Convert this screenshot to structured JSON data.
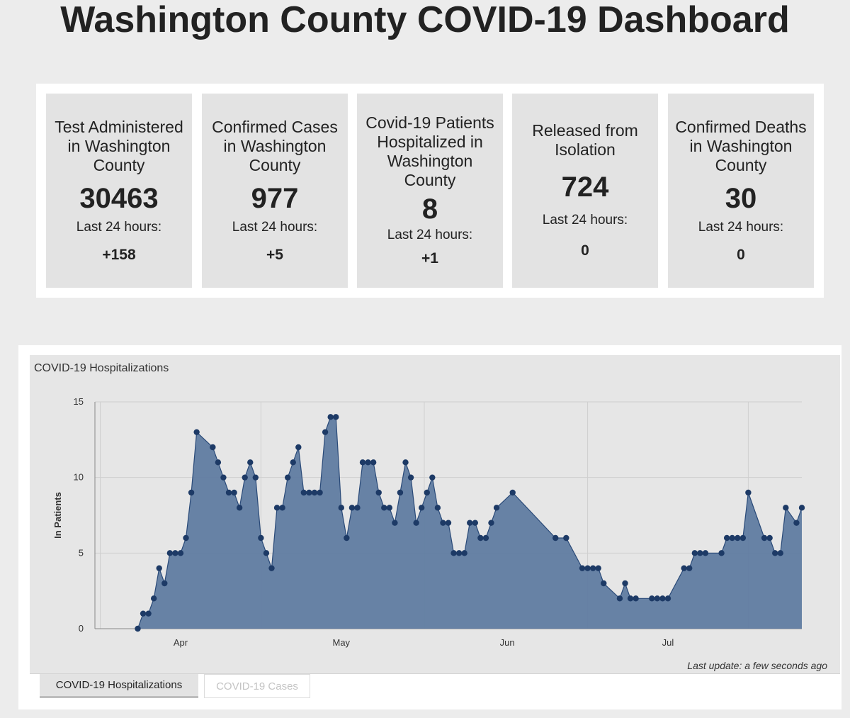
{
  "page": {
    "title": "Washington County COVID-19 Dashboard"
  },
  "stats": [
    {
      "label": "Test Administered in Washington County",
      "value": "30463",
      "sub_label": "Last 24 hours:",
      "delta": "+158"
    },
    {
      "label": "Confirmed Cases in Washington County",
      "value": "977",
      "sub_label": "Last 24 hours:",
      "delta": "+5"
    },
    {
      "label": "Covid-19 Patients Hospitalized in Washington County",
      "value": "8",
      "sub_label": "Last 24 hours:",
      "delta": "+1"
    },
    {
      "label": "Released from Isolation",
      "value": "724",
      "sub_label": "Last 24 hours:",
      "delta": "0"
    },
    {
      "label": "Confirmed Deaths in Washington County",
      "value": "30",
      "sub_label": "Last 24 hours:",
      "delta": "0"
    }
  ],
  "chart_panel": {
    "last_update": "Last update: a few seconds ago",
    "tabs": [
      {
        "label": "COVID-19 Hospitalizations",
        "active": true
      },
      {
        "label": "COVID-19 Cases",
        "active": false
      }
    ]
  },
  "colors": {
    "area_fill": "#5c7aa0",
    "line": "#2a4a78",
    "marker": "#1d3a66",
    "grid": "#cfcfcf"
  },
  "chart_data": {
    "type": "area",
    "title": "COVID-19 Hospitalizations",
    "xlabel": "",
    "ylabel": "In Patients",
    "ylim": [
      0,
      15
    ],
    "yticks": [
      0,
      5,
      10,
      15
    ],
    "x_unit": "day of year 2020",
    "xlim": [
      76,
      208
    ],
    "xticks": [
      {
        "label": "Apr",
        "day": 92
      },
      {
        "label": "May",
        "day": 122
      },
      {
        "label": "Jun",
        "day": 153
      },
      {
        "label": "Jul",
        "day": 183
      }
    ],
    "series": [
      {
        "name": "In Patients",
        "points": [
          [
            84,
            0
          ],
          [
            85,
            1
          ],
          [
            86,
            1
          ],
          [
            87,
            2
          ],
          [
            88,
            4
          ],
          [
            89,
            3
          ],
          [
            90,
            5
          ],
          [
            91,
            5
          ],
          [
            92,
            5
          ],
          [
            93,
            6
          ],
          [
            94,
            9
          ],
          [
            95,
            13
          ],
          [
            98,
            12
          ],
          [
            99,
            11
          ],
          [
            100,
            10
          ],
          [
            101,
            9
          ],
          [
            102,
            9
          ],
          [
            103,
            8
          ],
          [
            104,
            10
          ],
          [
            105,
            11
          ],
          [
            106,
            10
          ],
          [
            107,
            6
          ],
          [
            108,
            5
          ],
          [
            109,
            4
          ],
          [
            110,
            8
          ],
          [
            111,
            8
          ],
          [
            112,
            10
          ],
          [
            113,
            11
          ],
          [
            114,
            12
          ],
          [
            115,
            9
          ],
          [
            116,
            9
          ],
          [
            117,
            9
          ],
          [
            118,
            9
          ],
          [
            119,
            13
          ],
          [
            120,
            14
          ],
          [
            121,
            14
          ],
          [
            122,
            8
          ],
          [
            123,
            6
          ],
          [
            124,
            8
          ],
          [
            125,
            8
          ],
          [
            126,
            11
          ],
          [
            127,
            11
          ],
          [
            128,
            11
          ],
          [
            129,
            9
          ],
          [
            130,
            8
          ],
          [
            131,
            8
          ],
          [
            132,
            7
          ],
          [
            133,
            9
          ],
          [
            134,
            11
          ],
          [
            135,
            10
          ],
          [
            136,
            7
          ],
          [
            137,
            8
          ],
          [
            138,
            9
          ],
          [
            139,
            10
          ],
          [
            140,
            8
          ],
          [
            141,
            7
          ],
          [
            142,
            7
          ],
          [
            143,
            5
          ],
          [
            144,
            5
          ],
          [
            145,
            5
          ],
          [
            146,
            7
          ],
          [
            147,
            7
          ],
          [
            148,
            6
          ],
          [
            149,
            6
          ],
          [
            150,
            7
          ],
          [
            151,
            8
          ],
          [
            154,
            9
          ],
          [
            162,
            6
          ],
          [
            164,
            6
          ],
          [
            167,
            4
          ],
          [
            168,
            4
          ],
          [
            169,
            4
          ],
          [
            170,
            4
          ],
          [
            171,
            3
          ],
          [
            174,
            2
          ],
          [
            175,
            3
          ],
          [
            176,
            2
          ],
          [
            177,
            2
          ],
          [
            180,
            2
          ],
          [
            181,
            2
          ],
          [
            182,
            2
          ],
          [
            183,
            2
          ],
          [
            186,
            4
          ],
          [
            187,
            4
          ],
          [
            188,
            5
          ],
          [
            189,
            5
          ],
          [
            190,
            5
          ],
          [
            193,
            5
          ],
          [
            194,
            6
          ],
          [
            195,
            6
          ],
          [
            196,
            6
          ],
          [
            197,
            6
          ],
          [
            198,
            9
          ],
          [
            201,
            6
          ],
          [
            202,
            6
          ],
          [
            203,
            5
          ],
          [
            204,
            5
          ],
          [
            205,
            8
          ],
          [
            207,
            7
          ],
          [
            208,
            8
          ]
        ]
      }
    ]
  }
}
